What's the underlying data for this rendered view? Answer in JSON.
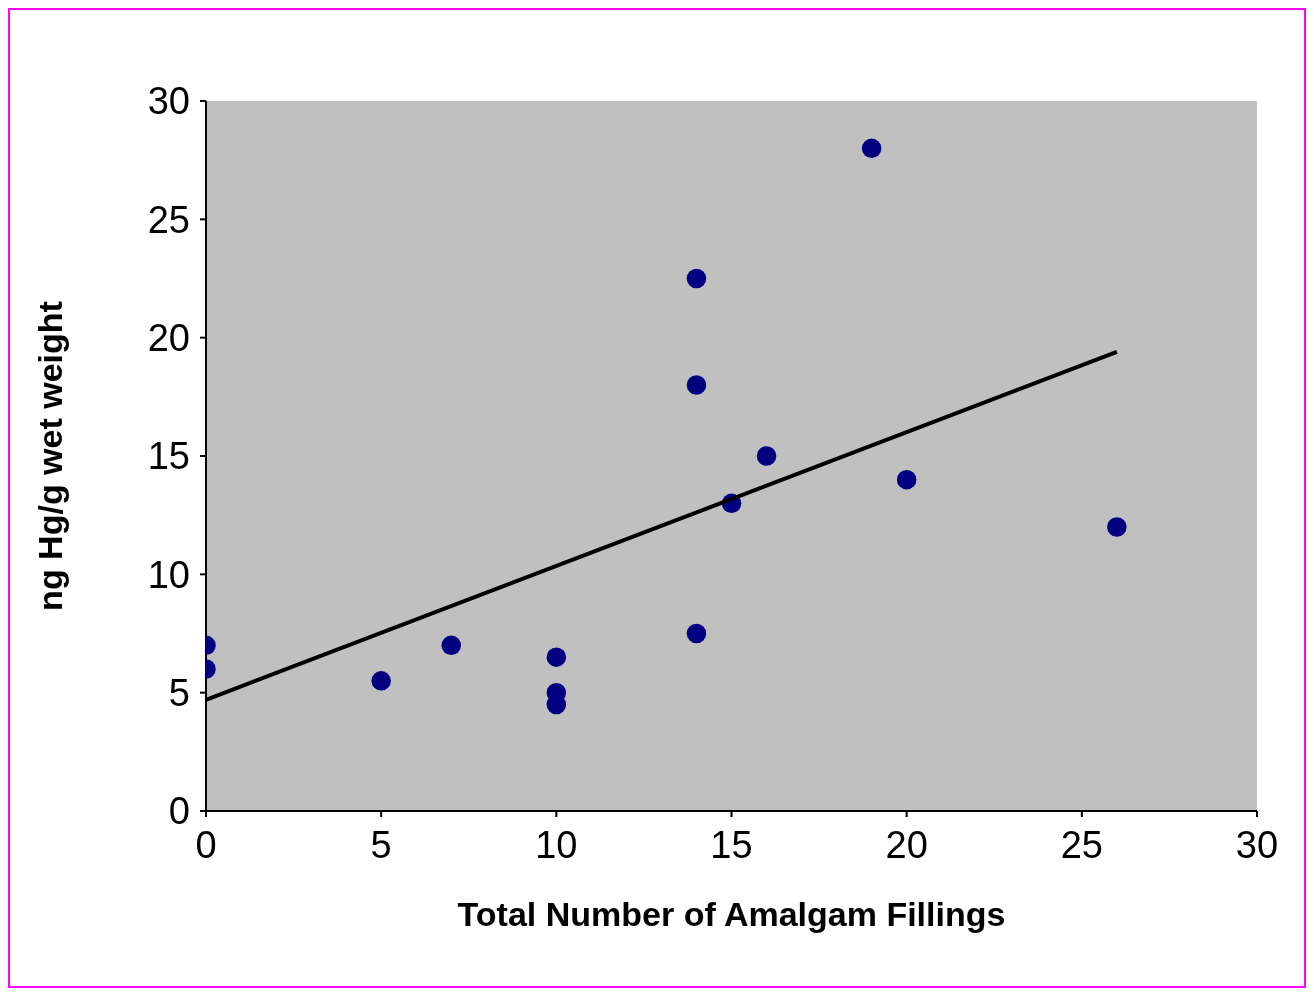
{
  "chart_data": {
    "type": "scatter",
    "xlabel": "Total Number of Amalgam Fillings",
    "ylabel": "ng Hg/g wet weight",
    "xlim": [
      0,
      30
    ],
    "xticks": [
      0,
      5,
      10,
      15,
      20,
      25,
      30
    ],
    "ylim": [
      0,
      30
    ],
    "yticks": [
      0,
      5,
      10,
      15,
      20,
      25,
      30
    ],
    "series": [
      {
        "marker": "circle",
        "color": "#000080",
        "x": [
          0,
          0,
          5,
          7,
          10,
          10,
          10,
          14,
          14,
          14,
          15,
          16,
          19,
          20,
          26
        ],
        "values": [
          7,
          6,
          5.5,
          7,
          6.5,
          5,
          4.5,
          22.5,
          18,
          7.5,
          13,
          15,
          28,
          14,
          12
        ]
      },
      {
        "type": "line",
        "marker": "none",
        "color": "#000000",
        "x": [
          0,
          26
        ],
        "values": [
          4.7,
          19.4
        ]
      }
    ]
  }
}
